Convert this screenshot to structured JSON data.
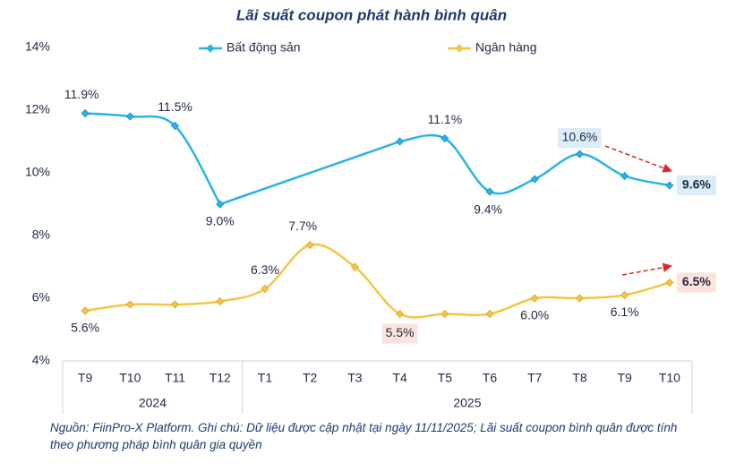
{
  "chart_data": {
    "type": "line",
    "title": "Lãi suất coupon phát hành bình quân",
    "categories": [
      "T9",
      "T10",
      "T11",
      "T12",
      "T1",
      "T2",
      "T3",
      "T4",
      "T5",
      "T6",
      "T7",
      "T8",
      "T9",
      "T10"
    ],
    "groups": [
      {
        "label": "2024",
        "count": 4
      },
      {
        "label": "2025",
        "count": 10
      }
    ],
    "ylim": [
      4,
      14
    ],
    "yticks": [
      {
        "value": 4,
        "label": "4%"
      },
      {
        "value": 6,
        "label": "6%"
      },
      {
        "value": 8,
        "label": "8%"
      },
      {
        "value": 10,
        "label": "10%"
      },
      {
        "value": 12,
        "label": "12%"
      },
      {
        "value": 14,
        "label": "14%"
      }
    ],
    "connect_gaps": true,
    "smooth": true,
    "series": [
      {
        "name": "Bất động sản",
        "color": "#29b3e6",
        "values": [
          11.9,
          11.8,
          11.5,
          9.0,
          null,
          null,
          null,
          11.0,
          11.1,
          9.4,
          9.8,
          10.6,
          9.9,
          9.6
        ],
        "value_labels": [
          "11.9%",
          null,
          "11.5%",
          "9.0%",
          null,
          null,
          null,
          null,
          "11.1%",
          "9.4%",
          null,
          "10.6%",
          null,
          "9.6%"
        ]
      },
      {
        "name": "Ngân hàng",
        "color": "#f6c444",
        "values": [
          5.6,
          5.8,
          5.8,
          5.9,
          6.3,
          7.7,
          7.0,
          5.5,
          5.5,
          5.5,
          6.0,
          6.0,
          6.1,
          6.5
        ],
        "value_labels": [
          "5.6%",
          null,
          null,
          null,
          "6.3%",
          "7.7%",
          null,
          "5.5%",
          null,
          null,
          "6.0%",
          null,
          "6.1%",
          "6.5%"
        ]
      }
    ],
    "notes": [
      "Nguồn: FiinPro-X Platform. Ghi chú: Dữ liệu được cập nhật tại ngày 11/11/2025; Lãi suất coupon bình quân được tính",
      "theo phương pháp bình quân gia quyền"
    ]
  }
}
